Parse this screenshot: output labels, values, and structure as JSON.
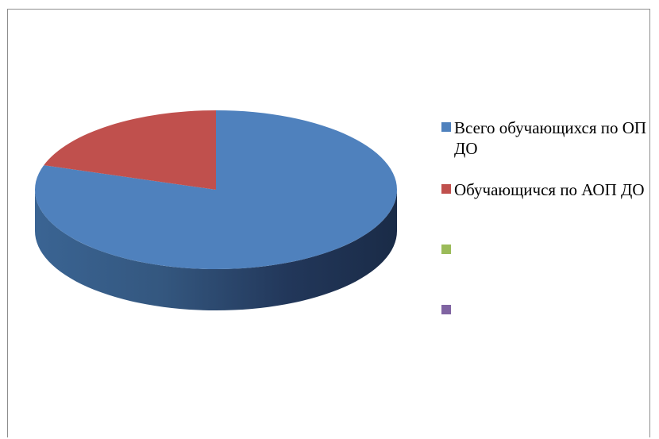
{
  "chart_data": {
    "type": "pie",
    "style": "3d",
    "legend_position": "right",
    "slices": [
      {
        "label": "Всего обучающихся по ОП ДО",
        "value": 80,
        "color": "#4F81BD",
        "dark": "#21354F"
      },
      {
        "label": "Обучающичся по АОП ДО",
        "value": 20,
        "color": "#C0504D",
        "dark": "#5E2321"
      },
      {
        "label": "",
        "value": 0,
        "color": "#9BBB59",
        "dark": "#4A5A2A"
      },
      {
        "label": "",
        "value": 0,
        "color": "#8064A2",
        "dark": "#3D2F4E"
      }
    ]
  }
}
